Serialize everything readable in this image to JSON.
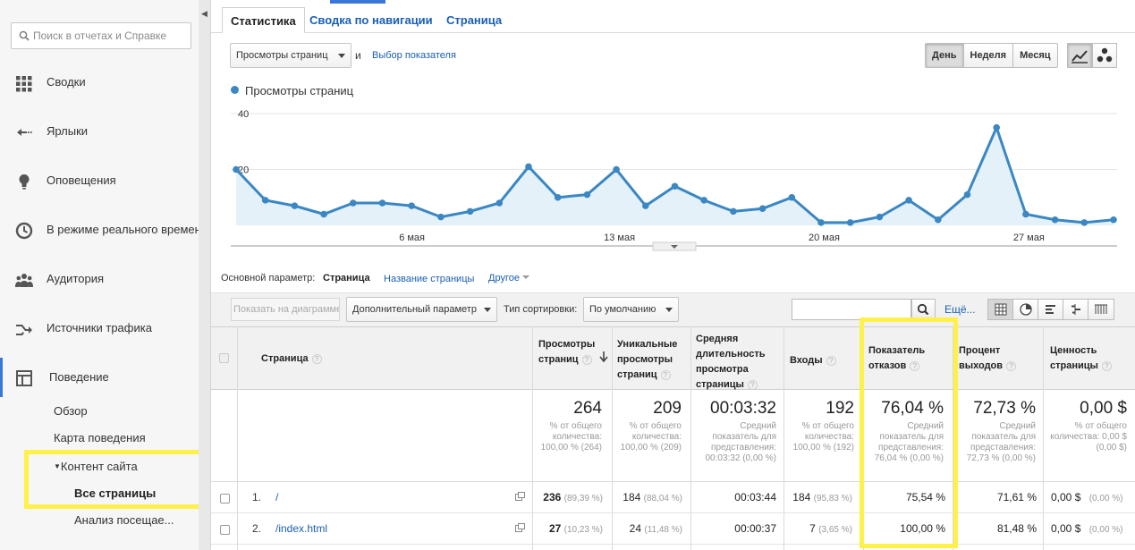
{
  "sidebar": {
    "search_placeholder": "Поиск в отчетах и Справке",
    "items": [
      {
        "label": "Сводки",
        "icon": "grid-icon"
      },
      {
        "label": "Ярлыки",
        "icon": "shortcut-arrow-icon"
      },
      {
        "label": "Оповещения",
        "icon": "lightbulb-icon"
      },
      {
        "label": "В режиме реального времени",
        "icon": "clock-icon"
      },
      {
        "label": "Аудитория",
        "icon": "people-icon"
      },
      {
        "label": "Источники трафика",
        "icon": "traffic-arrows-icon"
      },
      {
        "label": "Поведение",
        "icon": "layout-icon"
      }
    ],
    "behavior_sub": {
      "overview": "Обзор",
      "behavior_map": "Карта поведения",
      "site_content": "Контент сайта",
      "all_pages": "Все страницы",
      "content_drilldown": "Анализ посещае..."
    },
    "highlight_color": "#fff04a"
  },
  "tabs": [
    "Статистика",
    "Сводка по навигации",
    "Страница"
  ],
  "controls": {
    "metric_select": "Просмотры страниц",
    "and_label": "и",
    "choose_metric": "Выбор показателя",
    "periods": [
      "День",
      "Неделя",
      "Месяц"
    ],
    "active_period": "День"
  },
  "chart_data": {
    "type": "area",
    "series": [
      {
        "name": "Просмотры страниц",
        "color": "#3a87c3",
        "values": [
          20,
          9,
          7,
          4,
          8,
          8,
          7,
          3,
          5,
          8,
          21,
          10,
          11,
          20,
          7,
          14,
          9,
          5,
          6,
          10,
          1,
          1,
          3,
          9,
          2,
          11,
          35,
          4,
          2,
          1,
          2
        ]
      }
    ],
    "x_tick_labels": [
      "6 мая",
      "13 мая",
      "20 мая",
      "27 мая"
    ],
    "x_tick_index": [
      6,
      13,
      20,
      27
    ],
    "y_ticks": [
      20,
      40
    ],
    "ylim": [
      0,
      40
    ],
    "grid": true,
    "legend": "top-left"
  },
  "dimension": {
    "label": "Основной параметр:",
    "active": "Страница",
    "page_title": "Название страницы",
    "other": "Другое"
  },
  "toolbar": {
    "plot_rows": "Показать на диаграмме",
    "secondary_dim": "Дополнительный параметр",
    "sort_label": "Тип сортировки:",
    "sort_value": "По умолчанию",
    "advanced": "Ещё..."
  },
  "table": {
    "headers": {
      "page": "Страница",
      "pageviews": "Просмотры страниц",
      "unique": "Уникальные просмотры страниц",
      "avg_time": "Средняя длительность просмотра страницы",
      "entrances": "Входы",
      "bounce": "Показатель отказов",
      "exit": "Процент выходов",
      "value": "Ценность страницы"
    },
    "totals": {
      "pageviews": {
        "big": "264",
        "small": "% от общего количества: 100,00 % (264)"
      },
      "unique": {
        "big": "209",
        "small": "% от общего количества: 100,00 % (209)"
      },
      "avg_time": {
        "big": "00:03:32",
        "small": "Средний показатель для представления: 00:03:32 (0,00 %)"
      },
      "entrances": {
        "big": "192",
        "small": "% от общего количества: 100,00 % (192)"
      },
      "bounce": {
        "big": "76,04 %",
        "small": "Средний показатель для представления: 76,04 % (0,00 %)"
      },
      "exit": {
        "big": "72,73 %",
        "small": "Средний показатель для представления: 72,73 % (0,00 %)"
      },
      "value": {
        "big": "0,00 $",
        "small": "% от общего количества: 0,00 $ (0,00 $)"
      }
    },
    "rows": [
      {
        "num": "1.",
        "page": "/",
        "pageviews": "236",
        "pageviews_pct": "(89,39 %)",
        "unique": "184",
        "unique_pct": "(88,04 %)",
        "avg_time": "00:03:44",
        "entrances": "184",
        "entrances_pct": "(95,83 %)",
        "bounce": "75,54 %",
        "exit": "71,61 %",
        "value": "0,00 $",
        "value_pct": "(0,00 %)"
      },
      {
        "num": "2.",
        "page": "/index.html",
        "pageviews": "27",
        "pageviews_pct": "(10,23 %)",
        "unique": "24",
        "unique_pct": "(11,48 %)",
        "avg_time": "00:00:37",
        "entrances": "7",
        "entrances_pct": "(3,65 %)",
        "bounce": "100,00 %",
        "exit": "81,48 %",
        "value": "0,00 $",
        "value_pct": "(0,00 %)"
      }
    ]
  }
}
